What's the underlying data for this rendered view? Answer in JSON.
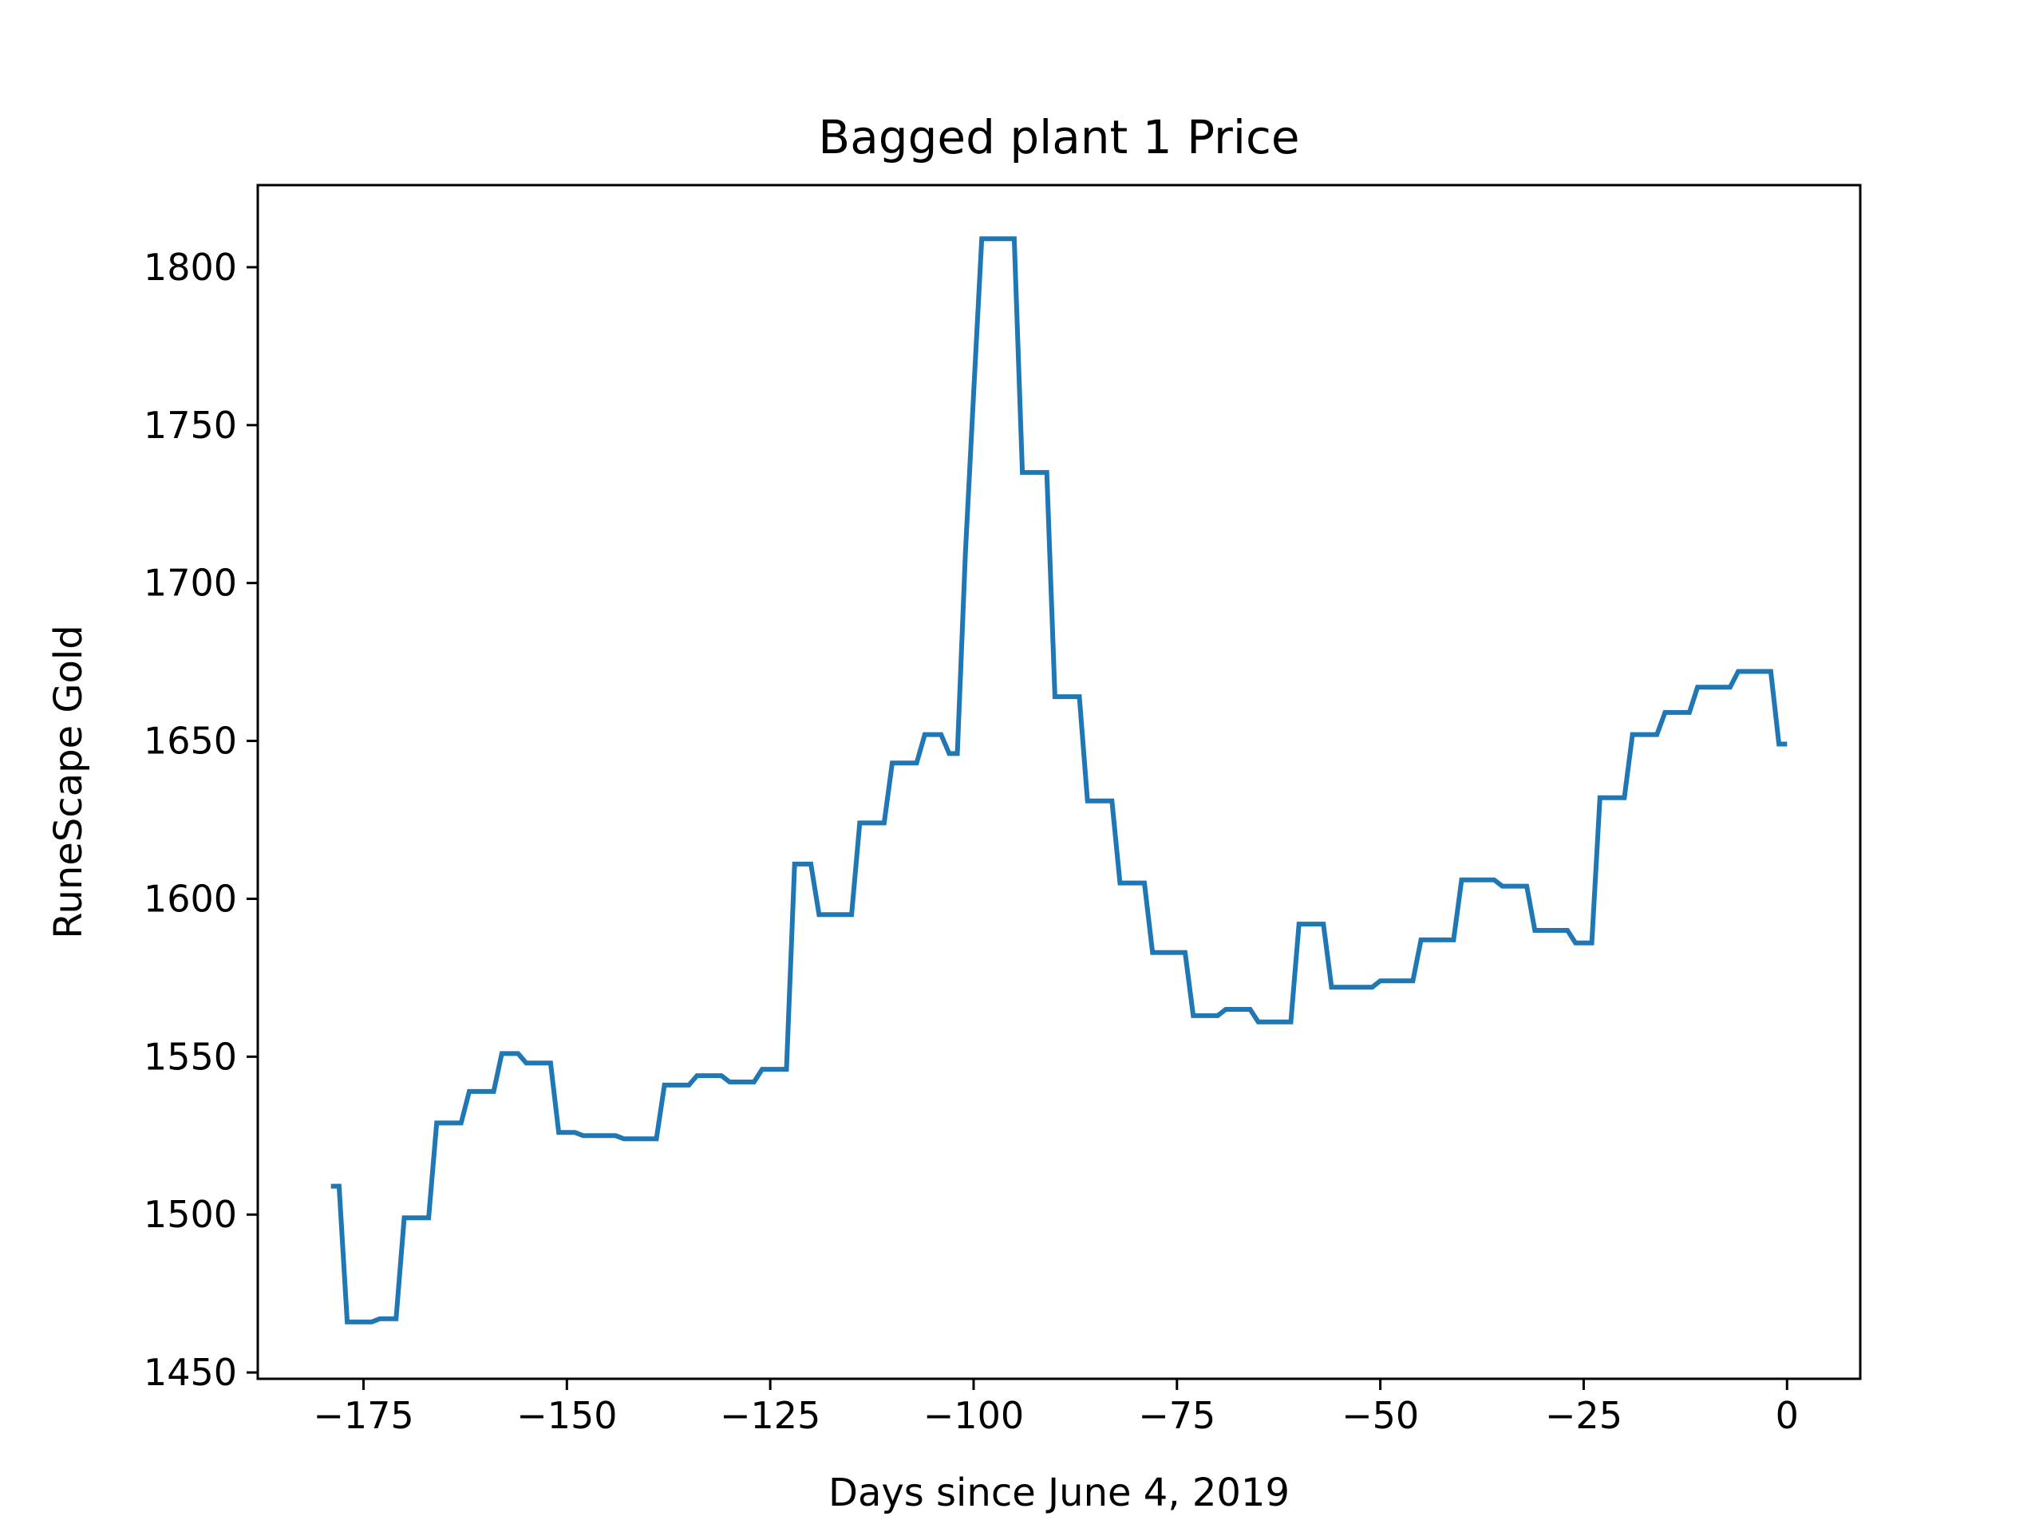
{
  "chart_data": {
    "type": "line",
    "title": "Bagged plant 1 Price",
    "xlabel": "Days since June 4, 2019",
    "ylabel": "RuneScape Gold",
    "xlim": [
      -188,
      9
    ],
    "ylim": [
      1448,
      1826
    ],
    "xticks": [
      -175,
      -150,
      -125,
      -100,
      -75,
      -50,
      -25,
      0
    ],
    "yticks": [
      1450,
      1500,
      1550,
      1600,
      1650,
      1700,
      1750,
      1800
    ],
    "grid": false,
    "series": [
      {
        "color": "#1f77b4",
        "x": [
          -179,
          -178,
          -177,
          -176,
          -175,
          -174,
          -173,
          -172,
          -171,
          -170,
          -169,
          -168,
          -167,
          -166,
          -165,
          -164,
          -163,
          -162,
          -161,
          -160,
          -159,
          -158,
          -157,
          -156,
          -155,
          -154,
          -153,
          -152,
          -151,
          -150,
          -149,
          -148,
          -147,
          -146,
          -145,
          -144,
          -143,
          -142,
          -141,
          -140,
          -139,
          -138,
          -137,
          -136,
          -135,
          -134,
          -133,
          -132,
          -131,
          -130,
          -129,
          -128,
          -127,
          -126,
          -125,
          -124,
          -123,
          -122,
          -121,
          -120,
          -119,
          -118,
          -117,
          -116,
          -115,
          -114,
          -113,
          -112,
          -111,
          -110,
          -109,
          -108,
          -107,
          -106,
          -105,
          -104,
          -103,
          -102,
          -101,
          -100,
          -99,
          -98,
          -97,
          -96,
          -95,
          -94,
          -93,
          -92,
          -91,
          -90,
          -89,
          -88,
          -87,
          -86,
          -85,
          -84,
          -83,
          -82,
          -81,
          -80,
          -79,
          -78,
          -77,
          -76,
          -75,
          -74,
          -73,
          -72,
          -71,
          -70,
          -69,
          -68,
          -67,
          -66,
          -65,
          -64,
          -63,
          -62,
          -61,
          -60,
          -59,
          -58,
          -57,
          -56,
          -55,
          -54,
          -53,
          -52,
          -51,
          -50,
          -49,
          -48,
          -47,
          -46,
          -45,
          -44,
          -43,
          -42,
          -41,
          -40,
          -39,
          -38,
          -37,
          -36,
          -35,
          -34,
          -33,
          -32,
          -31,
          -30,
          -29,
          -28,
          -27,
          -26,
          -25,
          -24,
          -23,
          -22,
          -21,
          -20,
          -19,
          -18,
          -17,
          -16,
          -15,
          -14,
          -13,
          -12,
          -11,
          -10,
          -9,
          -8,
          -7,
          -6,
          -5,
          -4,
          -3,
          -2,
          -1,
          0
        ],
        "y": [
          1509,
          1509,
          1466,
          1466,
          1466,
          1466,
          1467,
          1467,
          1467,
          1499,
          1499,
          1499,
          1499,
          1529,
          1529,
          1529,
          1529,
          1539,
          1539,
          1539,
          1539,
          1551,
          1551,
          1551,
          1548,
          1548,
          1548,
          1548,
          1526,
          1526,
          1526,
          1525,
          1525,
          1525,
          1525,
          1525,
          1524,
          1524,
          1524,
          1524,
          1524,
          1541,
          1541,
          1541,
          1541,
          1544,
          1544,
          1544,
          1544,
          1542,
          1542,
          1542,
          1542,
          1546,
          1546,
          1546,
          1546,
          1611,
          1611,
          1611,
          1595,
          1595,
          1595,
          1595,
          1595,
          1624,
          1624,
          1624,
          1624,
          1643,
          1643,
          1643,
          1643,
          1652,
          1652,
          1652,
          1646,
          1646,
          1710,
          1760,
          1809,
          1809,
          1809,
          1809,
          1809,
          1735,
          1735,
          1735,
          1735,
          1664,
          1664,
          1664,
          1664,
          1631,
          1631,
          1631,
          1631,
          1605,
          1605,
          1605,
          1605,
          1583,
          1583,
          1583,
          1583,
          1583,
          1563,
          1563,
          1563,
          1563,
          1565,
          1565,
          1565,
          1565,
          1561,
          1561,
          1561,
          1561,
          1561,
          1592,
          1592,
          1592,
          1592,
          1572,
          1572,
          1572,
          1572,
          1572,
          1572,
          1574,
          1574,
          1574,
          1574,
          1574,
          1587,
          1587,
          1587,
          1587,
          1587,
          1606,
          1606,
          1606,
          1606,
          1606,
          1604,
          1604,
          1604,
          1604,
          1590,
          1590,
          1590,
          1590,
          1590,
          1586,
          1586,
          1586,
          1632,
          1632,
          1632,
          1632,
          1652,
          1652,
          1652,
          1652,
          1659,
          1659,
          1659,
          1659,
          1667,
          1667,
          1667,
          1667,
          1667,
          1672,
          1672,
          1672,
          1672,
          1672,
          1649,
          1649
        ]
      }
    ]
  }
}
